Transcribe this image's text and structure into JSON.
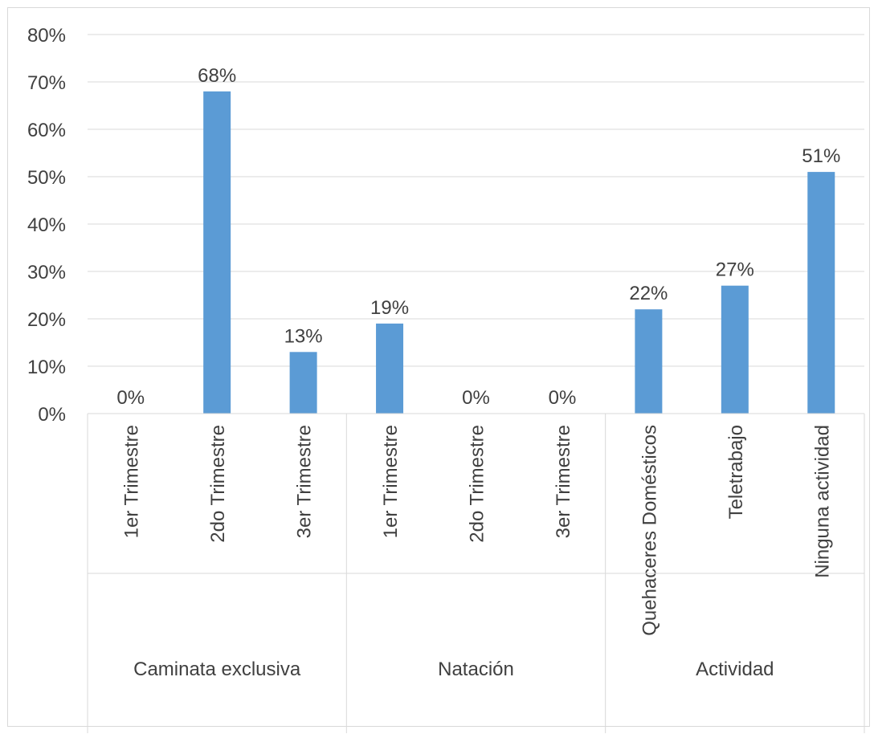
{
  "chart_data": {
    "type": "bar",
    "title": "",
    "xlabel": "",
    "ylabel": "",
    "ylim": [
      0,
      80
    ],
    "y_ticks": [
      0,
      10,
      20,
      30,
      40,
      50,
      60,
      70,
      80
    ],
    "y_tick_labels": [
      "0%",
      "10%",
      "20%",
      "30%",
      "40%",
      "50%",
      "60%",
      "70%",
      "80%"
    ],
    "grid": true,
    "legend": "none",
    "bar_color": "#5b9bd5",
    "groups": [
      {
        "label": "Caminata exclusiva",
        "categories": [
          "1er Trimestre",
          "2do Trimestre",
          "3er Trimestre"
        ],
        "values": [
          0,
          68,
          13
        ],
        "value_labels": [
          "0%",
          "68%",
          "13%"
        ]
      },
      {
        "label": "Natación",
        "categories": [
          "1er Trimestre",
          "2do Trimestre",
          "3er Trimestre"
        ],
        "values": [
          19,
          0,
          0
        ],
        "value_labels": [
          "19%",
          "0%",
          "0%"
        ]
      },
      {
        "label": "Actividad",
        "categories": [
          "Quehaceres Domésticos",
          "Teletrabajo",
          "Ninguna actividad"
        ],
        "values": [
          22,
          27,
          51
        ],
        "value_labels": [
          "22%",
          "27%",
          "51%"
        ]
      }
    ]
  }
}
